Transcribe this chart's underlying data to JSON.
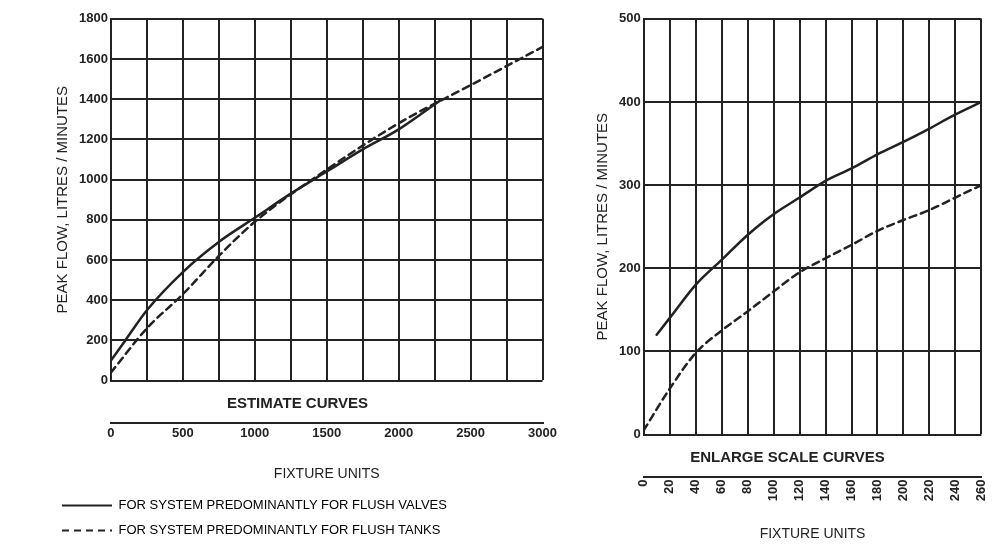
{
  "chart_data": [
    {
      "type": "line",
      "title": "ESTIMATE CURVES",
      "xlabel": "FIXTURE UNITS",
      "ylabel": "PEAK FLOW, LITRES / MINUTES",
      "xlim": [
        0,
        3000
      ],
      "xticks": [
        0,
        {
          "value": 250,
          "label": null
        },
        500,
        {
          "value": 750,
          "label": null
        },
        1000,
        {
          "value": 1250,
          "label": null
        },
        1500,
        {
          "value": 1750,
          "label": null
        },
        2000,
        {
          "value": 2250,
          "label": null
        },
        2500,
        {
          "value": 2750,
          "label": null
        },
        3000
      ],
      "ylim": [
        0,
        1800
      ],
      "yticks": [
        0,
        200,
        400,
        600,
        800,
        1000,
        1200,
        1400,
        1600,
        1800
      ],
      "grid": true,
      "legend": "bottom",
      "marker": "none",
      "series": [
        {
          "name": "FOR SYSTEM PREDOMINANTLY FOR FLUSH VALVES",
          "color": "#222222",
          "line_style": "solid",
          "x": [
            0,
            100,
            250,
            500,
            750,
            1000,
            1250,
            1500,
            1750,
            2000,
            2300
          ],
          "values": [
            100,
            200,
            350,
            540,
            690,
            810,
            930,
            1040,
            1150,
            1250,
            1400
          ]
        },
        {
          "name": "FOR SYSTEM PREDOMINANTLY FOR FLUSH TANKS",
          "color": "#222222",
          "line_style": "dashed",
          "x": [
            0,
            250,
            500,
            750,
            1000,
            1500,
            2000,
            2500,
            3000
          ],
          "values": [
            40,
            260,
            430,
            620,
            790,
            1050,
            1280,
            1470,
            1660
          ]
        }
      ]
    },
    {
      "type": "line",
      "title": "ENLARGE SCALE CURVES",
      "xlabel": "FIXTURE UNITS",
      "ylabel": "PEAK FLOW, LITRES / MINUTES",
      "xlim": [
        0,
        260
      ],
      "xticks": [
        0,
        20,
        40,
        60,
        80,
        100,
        120,
        140,
        160,
        180,
        200,
        220,
        240,
        260
      ],
      "ylim": [
        0,
        500
      ],
      "yticks": [
        0,
        100,
        200,
        300,
        400,
        500
      ],
      "grid": true,
      "marker": "none",
      "series": [
        {
          "color": "#222222",
          "line_style": "solid",
          "x": [
            10,
            20,
            40,
            60,
            80,
            100,
            120,
            140,
            160,
            180,
            200,
            220,
            240,
            260
          ],
          "values": [
            120,
            140,
            180,
            210,
            240,
            265,
            285,
            305,
            320,
            337,
            352,
            368,
            385,
            400
          ]
        },
        {
          "color": "#222222",
          "line_style": "dashed",
          "x": [
            0,
            20,
            40,
            60,
            80,
            100,
            120,
            140,
            160,
            180,
            200,
            220,
            240,
            260
          ],
          "values": [
            5,
            55,
            98,
            125,
            148,
            172,
            195,
            212,
            228,
            245,
            258,
            270,
            285,
            300
          ]
        }
      ]
    }
  ]
}
